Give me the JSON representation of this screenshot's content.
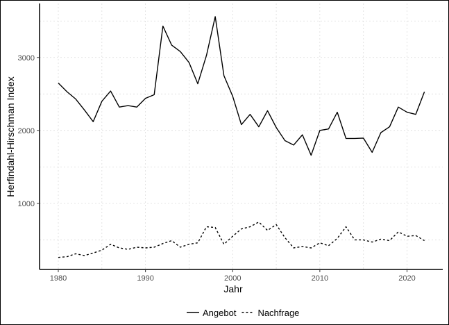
{
  "chart_data": {
    "type": "line",
    "title": "",
    "xlabel": "Jahr",
    "ylabel": "Herfindahl-Hirschman Index",
    "xlim": [
      1977.85,
      2024.1
    ],
    "ylim": [
      95,
      3740
    ],
    "xticks": [
      1980,
      1990,
      2000,
      2010,
      2020
    ],
    "yticks": [
      1000,
      2000,
      3000
    ],
    "grid": true,
    "legend_position": "bottom",
    "x": [
      1980,
      1981,
      1982,
      1983,
      1984,
      1985,
      1986,
      1987,
      1988,
      1989,
      1990,
      1991,
      1992,
      1993,
      1994,
      1995,
      1996,
      1997,
      1998,
      1999,
      2000,
      2001,
      2002,
      2003,
      2004,
      2005,
      2006,
      2007,
      2008,
      2009,
      2010,
      2011,
      2012,
      2013,
      2014,
      2015,
      2016,
      2017,
      2018,
      2019,
      2020,
      2021,
      2022
    ],
    "series": [
      {
        "name": "Angebot",
        "style": "solid",
        "values": [
          2650,
          2530,
          2430,
          2280,
          2120,
          2400,
          2540,
          2320,
          2340,
          2320,
          2440,
          2490,
          3430,
          3170,
          3080,
          2930,
          2640,
          3030,
          3560,
          2750,
          2470,
          2080,
          2220,
          2050,
          2270,
          2040,
          1860,
          1800,
          1940,
          1660,
          2000,
          2020,
          2250,
          1890,
          1890,
          1895,
          1700,
          1970,
          2050,
          2320,
          2250,
          2220,
          2530
        ]
      },
      {
        "name": "Nachfrage",
        "style": "dashed",
        "values": [
          260,
          270,
          310,
          285,
          320,
          360,
          440,
          390,
          370,
          400,
          390,
          400,
          450,
          490,
          400,
          440,
          460,
          680,
          670,
          440,
          550,
          650,
          680,
          745,
          630,
          710,
          530,
          390,
          410,
          390,
          460,
          420,
          520,
          680,
          500,
          500,
          470,
          510,
          490,
          610,
          550,
          560,
          490
        ]
      }
    ]
  }
}
